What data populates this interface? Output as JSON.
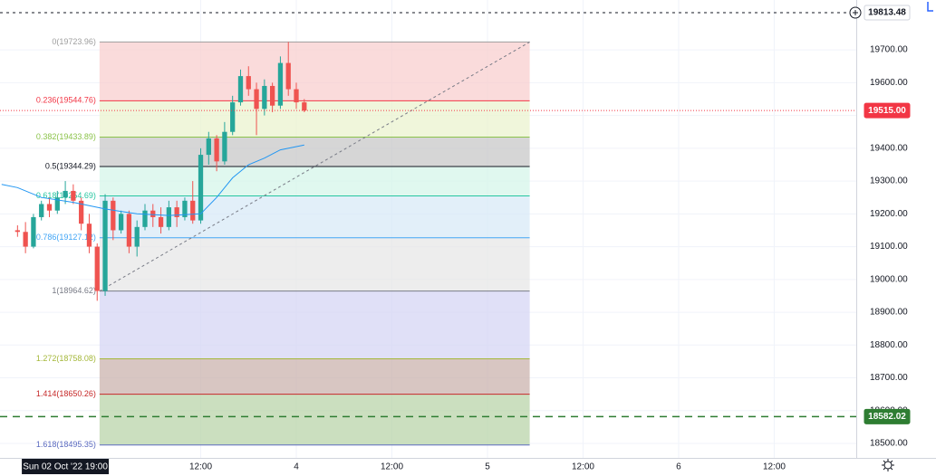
{
  "chart_data": {
    "type": "candlestick",
    "xlim": [
      -13.2,
      94.3
    ],
    "ylim": [
      18456,
      19852
    ],
    "yticks": [
      {
        "value": 18500,
        "label": "18500.00"
      },
      {
        "value": 18600,
        "label": "18600.00"
      },
      {
        "value": 18700,
        "label": "18700.00"
      },
      {
        "value": 18800,
        "label": "18800.00"
      },
      {
        "value": 18900,
        "label": "18900.00"
      },
      {
        "value": 19000,
        "label": "19000.00"
      },
      {
        "value": 19100,
        "label": "19100.00"
      },
      {
        "value": 19200,
        "label": "19200.00"
      },
      {
        "value": 19300,
        "label": "19300.00"
      },
      {
        "value": 19400,
        "label": "19400.00"
      },
      {
        "value": 19500,
        "label": "19500.00"
      },
      {
        "value": 19600,
        "label": "19600.00"
      },
      {
        "value": 19700,
        "label": "19700.00"
      }
    ],
    "xticks": [
      {
        "value": 12,
        "label": "12:00"
      },
      {
        "value": 24,
        "label": "4"
      },
      {
        "value": 36,
        "label": "12:00"
      },
      {
        "value": 48,
        "label": "5"
      },
      {
        "value": 60,
        "label": "12:00"
      },
      {
        "value": 72,
        "label": "6"
      },
      {
        "value": 84,
        "label": "12:00"
      }
    ],
    "grid": true,
    "cursor": {
      "value": -5,
      "label": "Sun 02 Oct '22  19:00"
    },
    "up_color": "#26a69a",
    "down_color": "#ef5350",
    "x": [
      -11,
      -10,
      -9,
      -8,
      -7,
      -6,
      -5,
      -4,
      -3,
      -2,
      -1,
      0,
      1,
      2,
      3,
      4,
      5,
      6,
      7,
      8,
      9,
      10,
      11,
      12,
      13,
      14,
      15,
      16,
      17,
      18,
      19,
      20,
      21,
      22,
      23,
      24,
      25
    ],
    "open": [
      19150,
      19145,
      19100,
      19190,
      19230,
      19210,
      19250,
      19270,
      19240,
      19170,
      19100,
      18965,
      19240,
      19150,
      19200,
      19100,
      19160,
      19210,
      19190,
      19160,
      19220,
      19190,
      19240,
      19180,
      19380,
      19430,
      19360,
      19450,
      19540,
      19620,
      19580,
      19520,
      19590,
      19530,
      19660,
      19580,
      19540
    ],
    "high": [
      19165,
      19175,
      19200,
      19240,
      19250,
      19270,
      19300,
      19290,
      19250,
      19200,
      19110,
      19260,
      19250,
      19210,
      19210,
      19180,
      19230,
      19230,
      19220,
      19240,
      19240,
      19250,
      19300,
      19400,
      19450,
      19440,
      19480,
      19560,
      19640,
      19650,
      19600,
      19610,
      19600,
      19680,
      19724,
      19600,
      19550
    ],
    "low": [
      19130,
      19080,
      19095,
      19180,
      19190,
      19200,
      19230,
      19230,
      19150,
      19080,
      18935,
      18950,
      19120,
      19140,
      19080,
      19070,
      19150,
      19160,
      19140,
      19150,
      19160,
      19180,
      19170,
      19170,
      19350,
      19330,
      19350,
      19440,
      19530,
      19560,
      19440,
      19500,
      19510,
      19520,
      19560,
      19520,
      19510
    ],
    "close": [
      19145,
      19100,
      19190,
      19230,
      19210,
      19250,
      19270,
      19240,
      19170,
      19100,
      18965,
      19240,
      19150,
      19200,
      19100,
      19160,
      19210,
      19190,
      19160,
      19220,
      19190,
      19240,
      19180,
      19380,
      19430,
      19360,
      19450,
      19540,
      19620,
      19580,
      19520,
      19590,
      19530,
      19660,
      19580,
      19540,
      19515
    ],
    "ma": {
      "color": "#2196f3",
      "x": [
        -13,
        -11,
        -8,
        -4,
        0,
        4,
        8,
        12,
        14,
        16,
        18,
        20,
        22,
        25
      ],
      "values": [
        19290,
        19280,
        19250,
        19235,
        19215,
        19200,
        19195,
        19200,
        19250,
        19310,
        19350,
        19370,
        19395,
        19410
      ]
    },
    "fib_x": [
      -0.7,
      53.3
    ],
    "fib_levels": [
      {
        "label": "0(19723.96)",
        "value": 19723.96,
        "color": "#9e9e9e",
        "fill": null
      },
      {
        "label": "0.236(19544.76)",
        "value": 19544.76,
        "color": "#f23645",
        "fill": "#f8cfcf"
      },
      {
        "label": "0.382(19433.89)",
        "value": 19433.89,
        "color": "#8bc34a",
        "fill": "#ebf3cf"
      },
      {
        "label": "0.5(19344.29)",
        "value": 19344.29,
        "color": "#131722",
        "fill": "#c8c8c8"
      },
      {
        "label": "0.618(19254.69)",
        "value": 19254.69,
        "color": "#26c6a0",
        "fill": "#d5f5e9"
      },
      {
        "label": "0.786(19127.12)",
        "value": 19127.12,
        "color": "#42a5f5",
        "fill": "#d8e9f7"
      },
      {
        "label": "1(18964.62)",
        "value": 18964.62,
        "color": "#787b86",
        "fill": "#e7e7e7"
      },
      {
        "label": "1.272(18758.08)",
        "value": 18758.08,
        "color": "#a5b83b",
        "fill": "#d5d5f4"
      },
      {
        "label": "1.414(18650.26)",
        "value": 18650.26,
        "color": "#c62828",
        "fill": "#cbb3ae"
      },
      {
        "label": "1.618(18495.35)",
        "value": 18495.35,
        "color": "#5c6bc0",
        "fill": "#bad4aa"
      }
    ],
    "price_lines": [
      {
        "value": 19813.48,
        "label": "19813.48",
        "color": "#131722",
        "dash": "3,4",
        "badge": "#ffffff"
      },
      {
        "value": 19515.0,
        "label": "19515.00",
        "color": "#f23645",
        "dash": "1,2",
        "badge": "#f23645"
      },
      {
        "value": 18582.02,
        "label": "18582.02",
        "color": "#2e7d32",
        "dash": "8,6",
        "badge": "#2e7d32"
      }
    ]
  }
}
